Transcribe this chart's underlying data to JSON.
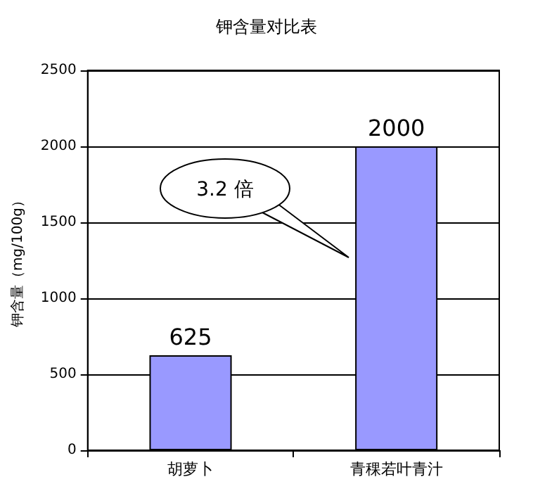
{
  "chart_data": {
    "type": "bar",
    "title": "钾含量对比表",
    "ylabel": "钾含量（mg/100g）",
    "categories": [
      "胡萝卜",
      "青稞若叶青汁"
    ],
    "values": [
      625,
      2000
    ],
    "color": "#9999ff",
    "ylim": [
      0,
      2500
    ],
    "yticks": [
      0,
      500,
      1000,
      1500,
      2000,
      2500
    ],
    "grid": "y",
    "data_labels": true,
    "annotations": [
      "3.2 倍"
    ]
  }
}
